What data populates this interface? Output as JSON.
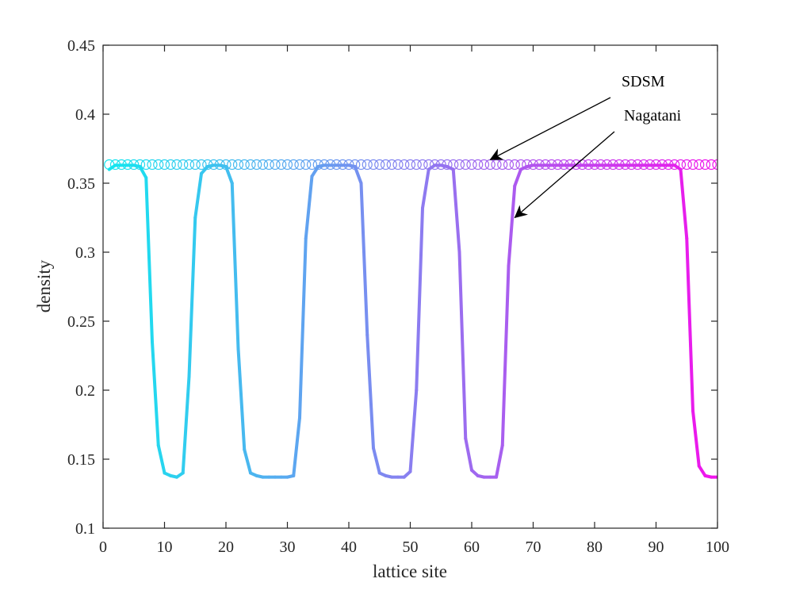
{
  "chart_data": {
    "type": "line",
    "xlabel": "lattice site",
    "ylabel": "density",
    "xlim": [
      0,
      100
    ],
    "ylim": [
      0.1,
      0.45
    ],
    "xticks": [
      0,
      10,
      20,
      30,
      40,
      50,
      60,
      70,
      80,
      90,
      100
    ],
    "yticks": [
      0.1,
      0.15,
      0.2,
      0.25,
      0.3,
      0.35,
      0.4,
      0.45
    ],
    "xtick_labels": [
      "0",
      "10",
      "20",
      "30",
      "40",
      "50",
      "60",
      "70",
      "80",
      "90",
      "100"
    ],
    "ytick_labels": [
      "0.1",
      "0.15",
      "0.2",
      "0.25",
      "0.3",
      "0.35",
      "0.4",
      "0.45"
    ],
    "grid": false,
    "colors": {
      "start": "#14e6ef",
      "mid": "#8a7ef0",
      "end": "#f014ec",
      "axis": "#262626"
    },
    "series": [
      {
        "marker": "circle",
        "x": [
          1,
          2,
          3,
          4,
          5,
          6,
          7,
          8,
          9,
          10,
          11,
          12,
          13,
          14,
          15,
          16,
          17,
          18,
          19,
          20,
          21,
          22,
          23,
          24,
          25,
          26,
          27,
          28,
          29,
          30,
          31,
          32,
          33,
          34,
          35,
          36,
          37,
          38,
          39,
          40,
          41,
          42,
          43,
          44,
          45,
          46,
          47,
          48,
          49,
          50,
          51,
          52,
          53,
          54,
          55,
          56,
          57,
          58,
          59,
          60,
          61,
          62,
          63,
          64,
          65,
          66,
          67,
          68,
          69,
          70,
          71,
          72,
          73,
          74,
          75,
          76,
          77,
          78,
          79,
          80,
          81,
          82,
          83,
          84,
          85,
          86,
          87,
          88,
          89,
          90,
          91,
          92,
          93,
          94,
          95,
          96,
          97,
          98,
          99,
          100
        ],
        "y": [
          0.3635,
          0.3635,
          0.3635,
          0.3635,
          0.3635,
          0.3635,
          0.3635,
          0.3635,
          0.3635,
          0.3635,
          0.3635,
          0.3635,
          0.3635,
          0.3635,
          0.3635,
          0.3635,
          0.3635,
          0.3635,
          0.3635,
          0.3635,
          0.3635,
          0.3635,
          0.3635,
          0.3635,
          0.3635,
          0.3635,
          0.3635,
          0.3635,
          0.3635,
          0.3635,
          0.3635,
          0.3635,
          0.3635,
          0.3635,
          0.3635,
          0.3635,
          0.3635,
          0.3635,
          0.3635,
          0.3635,
          0.3635,
          0.3635,
          0.3635,
          0.3635,
          0.3635,
          0.3635,
          0.3635,
          0.3635,
          0.3635,
          0.3635,
          0.3635,
          0.3635,
          0.3635,
          0.3635,
          0.3635,
          0.3635,
          0.3635,
          0.3635,
          0.3635,
          0.3635,
          0.3635,
          0.3635,
          0.3635,
          0.3635,
          0.3635,
          0.3635,
          0.3635,
          0.3635,
          0.3635,
          0.3635,
          0.3635,
          0.3635,
          0.3635,
          0.3635,
          0.3635,
          0.3635,
          0.3635,
          0.3635,
          0.3635,
          0.3635,
          0.3635,
          0.3635,
          0.3635,
          0.3635,
          0.3635,
          0.3635,
          0.3635,
          0.3635,
          0.3635,
          0.3635,
          0.3635,
          0.3635,
          0.3635,
          0.3635,
          0.3635,
          0.3635,
          0.3635,
          0.3635,
          0.3635,
          0.3635
        ]
      },
      {
        "marker": "none",
        "x": [
          1,
          2,
          3,
          4,
          5,
          6,
          7,
          8,
          9,
          10,
          11,
          12,
          13,
          14,
          15,
          16,
          17,
          18,
          19,
          20,
          21,
          22,
          23,
          24,
          25,
          26,
          27,
          28,
          29,
          30,
          31,
          32,
          33,
          34,
          35,
          36,
          37,
          38,
          39,
          40,
          41,
          42,
          43,
          44,
          45,
          46,
          47,
          48,
          49,
          50,
          51,
          52,
          53,
          54,
          55,
          56,
          57,
          58,
          59,
          60,
          61,
          62,
          63,
          64,
          65,
          66,
          67,
          68,
          69,
          70,
          71,
          72,
          73,
          74,
          75,
          76,
          77,
          78,
          79,
          80,
          81,
          82,
          83,
          84,
          85,
          86,
          87,
          88,
          89,
          90,
          91,
          92,
          93,
          94,
          95,
          96,
          97,
          98,
          99,
          100
        ],
        "y": [
          0.36,
          0.363,
          0.363,
          0.363,
          0.363,
          0.362,
          0.354,
          0.235,
          0.16,
          0.14,
          0.138,
          0.137,
          0.14,
          0.21,
          0.325,
          0.357,
          0.362,
          0.363,
          0.363,
          0.362,
          0.35,
          0.23,
          0.157,
          0.14,
          0.138,
          0.137,
          0.137,
          0.137,
          0.137,
          0.137,
          0.138,
          0.18,
          0.31,
          0.355,
          0.362,
          0.363,
          0.363,
          0.363,
          0.363,
          0.363,
          0.362,
          0.35,
          0.24,
          0.158,
          0.14,
          0.138,
          0.137,
          0.137,
          0.137,
          0.141,
          0.2,
          0.332,
          0.36,
          0.363,
          0.363,
          0.362,
          0.36,
          0.3,
          0.165,
          0.142,
          0.138,
          0.137,
          0.137,
          0.137,
          0.16,
          0.29,
          0.348,
          0.36,
          0.362,
          0.363,
          0.363,
          0.363,
          0.363,
          0.363,
          0.363,
          0.363,
          0.363,
          0.363,
          0.363,
          0.363,
          0.363,
          0.363,
          0.363,
          0.363,
          0.363,
          0.363,
          0.363,
          0.363,
          0.363,
          0.363,
          0.363,
          0.363,
          0.363,
          0.36,
          0.31,
          0.185,
          0.145,
          0.138,
          0.137,
          0.137
        ]
      }
    ],
    "annotations": [
      {
        "text": "SDSM",
        "target": [
          63,
          0.367
        ]
      },
      {
        "text": "Nagatani",
        "target": [
          67,
          0.325
        ]
      }
    ]
  }
}
